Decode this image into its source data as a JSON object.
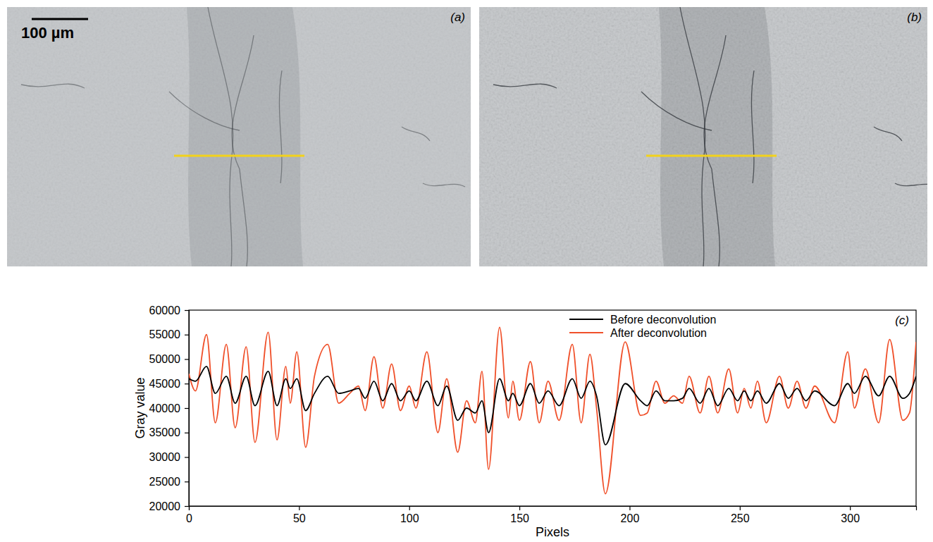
{
  "panels": [
    {
      "label": "(a)",
      "scale_bar": "100 µm"
    },
    {
      "label": "(b)"
    }
  ],
  "chart_data": {
    "type": "line",
    "x_label": "Pixels",
    "y_label": "Gray value",
    "annotations": [
      {
        "text": "(c)"
      }
    ],
    "x": [
      0,
      3,
      8,
      12,
      17,
      21,
      26,
      30,
      36,
      40,
      44,
      46,
      49,
      53,
      57,
      63,
      68,
      73,
      77,
      80,
      84,
      88,
      92,
      96,
      100,
      103,
      108,
      113,
      117,
      122,
      126,
      130,
      133,
      136,
      141,
      145,
      147,
      150,
      155,
      159,
      163,
      168,
      174,
      178,
      182,
      185,
      189,
      198,
      205,
      208,
      212,
      216,
      220,
      224,
      227,
      232,
      236,
      240,
      245,
      249,
      252,
      255,
      258,
      262,
      268,
      272,
      276,
      280,
      284,
      293,
      299,
      302,
      307,
      313,
      318,
      324,
      327,
      330
    ],
    "series": [
      {
        "name": "Before deconvolution",
        "color": "#000000",
        "values": [
          46000,
          45500,
          48500,
          43000,
          46500,
          41000,
          46500,
          40500,
          47500,
          40500,
          46000,
          44000,
          46000,
          39500,
          43000,
          46500,
          43000,
          43500,
          44000,
          42000,
          45500,
          41500,
          45000,
          41500,
          43500,
          41500,
          45500,
          40500,
          44500,
          37500,
          40000,
          39000,
          41500,
          35000,
          46000,
          41500,
          43000,
          40500,
          45000,
          41000,
          43500,
          40500,
          46000,
          42000,
          45500,
          42500,
          32500,
          45000,
          41500,
          40500,
          43500,
          41500,
          41500,
          42000,
          44000,
          41000,
          44000,
          40500,
          44000,
          41500,
          43500,
          41500,
          43500,
          41000,
          45000,
          42000,
          44000,
          41500,
          43500,
          40500,
          45000,
          43000,
          46500,
          42500,
          46500,
          42000,
          43000,
          46500
        ]
      },
      {
        "name": "After deconvolution",
        "color": "#f0502a",
        "values": [
          47000,
          43500,
          55000,
          37000,
          53000,
          36000,
          52500,
          33000,
          55500,
          33500,
          48500,
          41000,
          51500,
          32000,
          46500,
          53000,
          41000,
          43000,
          44500,
          39500,
          50500,
          40000,
          49000,
          39500,
          44500,
          40000,
          51500,
          35000,
          46000,
          31000,
          41500,
          37000,
          47500,
          27500,
          56500,
          38000,
          45500,
          37500,
          49500,
          37000,
          45500,
          37500,
          53000,
          37000,
          51000,
          40000,
          22500,
          53500,
          38500,
          39000,
          45500,
          41000,
          42500,
          41000,
          46500,
          39000,
          46500,
          39000,
          48000,
          39000,
          44000,
          40000,
          45500,
          37000,
          46500,
          40000,
          45500,
          40000,
          44500,
          37000,
          51500,
          40000,
          48000,
          37000,
          54000,
          37500,
          39000,
          53500
        ]
      }
    ],
    "xlim": [
      0,
      330
    ],
    "xticks": [
      0,
      50,
      100,
      150,
      200,
      250,
      300
    ],
    "ylim": [
      20000,
      60000
    ],
    "yticks": [
      20000,
      25000,
      30000,
      35000,
      40000,
      45000,
      50000,
      55000,
      60000
    ],
    "legend": "upper right",
    "grid": false
  }
}
